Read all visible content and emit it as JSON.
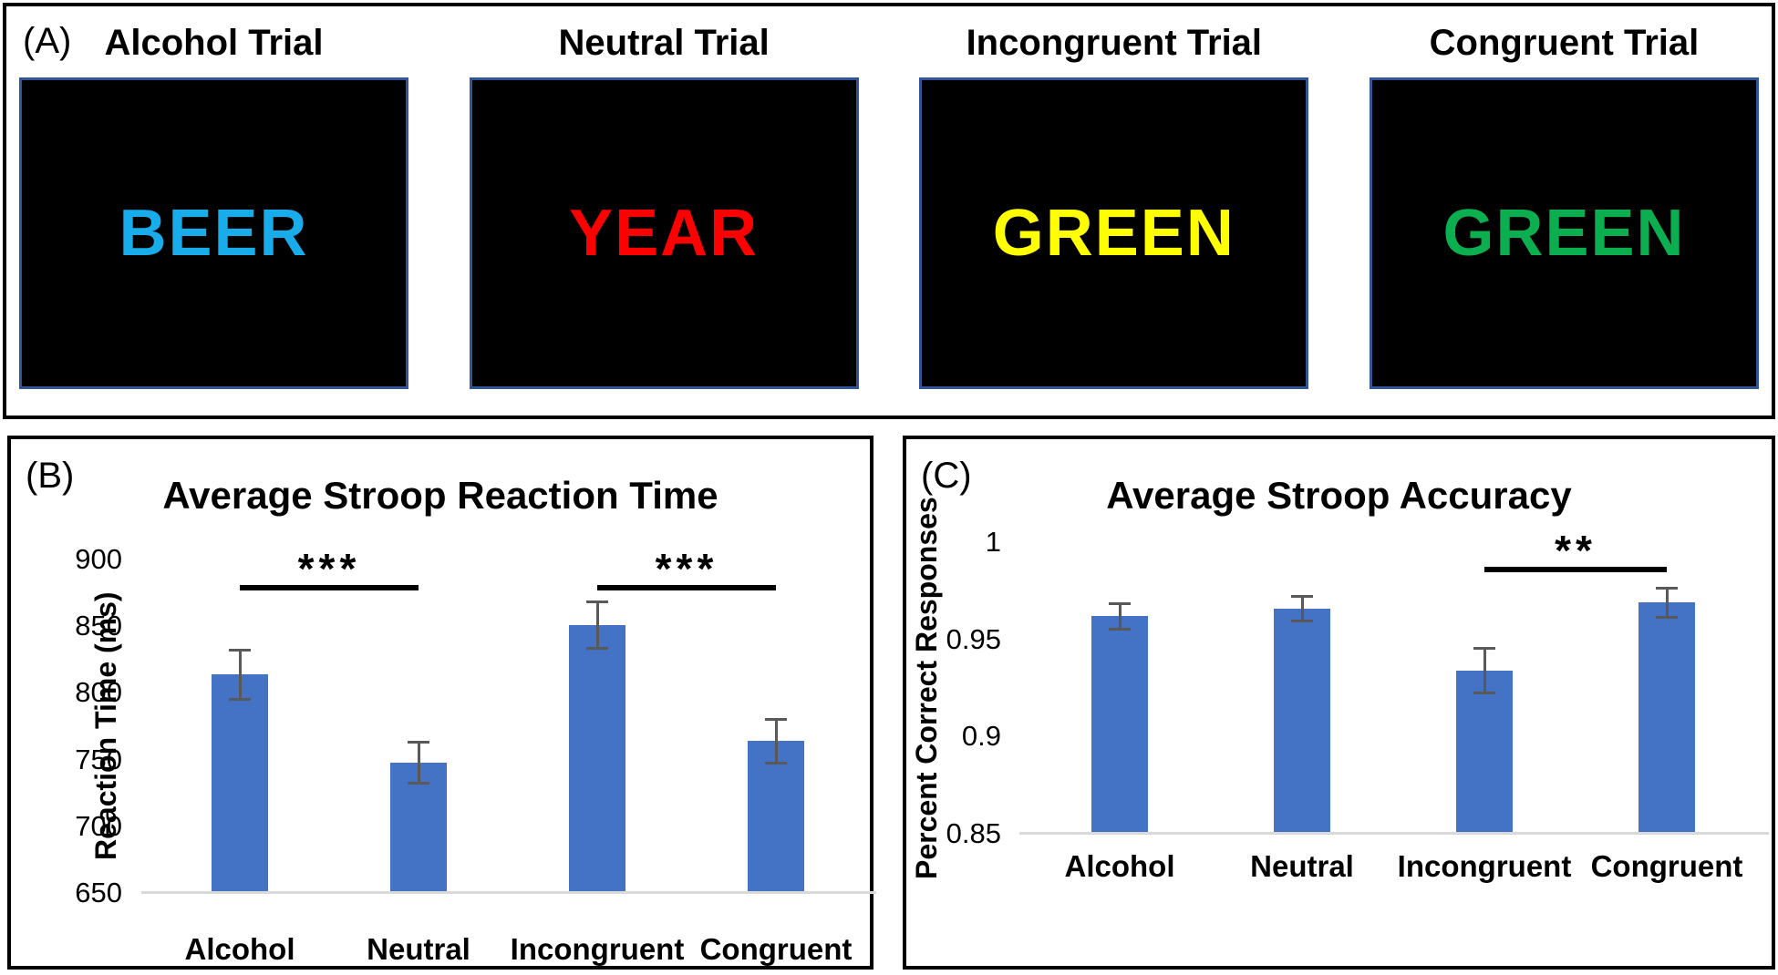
{
  "figure": {
    "background": "#ffffff",
    "panel_border_color": "#000000"
  },
  "colors": {
    "bar": "#4472C4",
    "error_bar": "#595959",
    "axis_line": "#D9D9D9",
    "significance": "#000000",
    "screen_border": "#2F5597",
    "screen_background": "#000000"
  },
  "panel_a": {
    "label": "(A)",
    "trials": [
      {
        "title": "Alcohol Trial",
        "word": "BEER",
        "color": "#19ACEA"
      },
      {
        "title": "Neutral Trial",
        "word": "YEAR",
        "color": "#FE0000"
      },
      {
        "title": "Incongruent Trial",
        "word": "GREEN",
        "color": "#FFFF00"
      },
      {
        "title": "Congruent Trial",
        "word": "GREEN",
        "color": "#0CAF50"
      }
    ]
  },
  "chart_data": [
    {
      "panel_label": "(B)",
      "type": "bar",
      "title": "Average Stroop Reaction Time",
      "xlabel": "",
      "ylabel": "Reaction Time (ms)",
      "categories": [
        "Alcohol",
        "Neutral",
        "Incongruent",
        "Congruent"
      ],
      "values": [
        814,
        748,
        851,
        764
      ],
      "errors": [
        19,
        16,
        18,
        17
      ],
      "ylim": [
        650,
        900
      ],
      "yticks": [
        900,
        850,
        800,
        750,
        700,
        650
      ],
      "ytick_labels": [
        "900",
        "850",
        "800",
        "750",
        "700",
        "650"
      ],
      "grid": false,
      "legend": "none",
      "significance": [
        {
          "from": 0,
          "to": 1,
          "label": "***",
          "y": 881
        },
        {
          "from": 2,
          "to": 3,
          "label": "***",
          "y": 881
        }
      ]
    },
    {
      "panel_label": "(C)",
      "type": "bar",
      "title": "Average Stroop Accuracy",
      "xlabel": "",
      "ylabel": "Percent Correct Responses",
      "categories": [
        "Alcohol",
        "Neutral",
        "Incongruent",
        "Congruent"
      ],
      "values": [
        0.962,
        0.966,
        0.934,
        0.969
      ],
      "errors": [
        0.007,
        0.007,
        0.012,
        0.008
      ],
      "ylim": [
        0.85,
        1
      ],
      "yticks": [
        1,
        0.95,
        0.9,
        0.85
      ],
      "ytick_labels": [
        "1",
        "0.95",
        "0.9",
        "0.85"
      ],
      "grid": false,
      "legend": "none",
      "significance": [
        {
          "from": 2,
          "to": 3,
          "label": "**",
          "y": 0.9875
        }
      ]
    }
  ]
}
